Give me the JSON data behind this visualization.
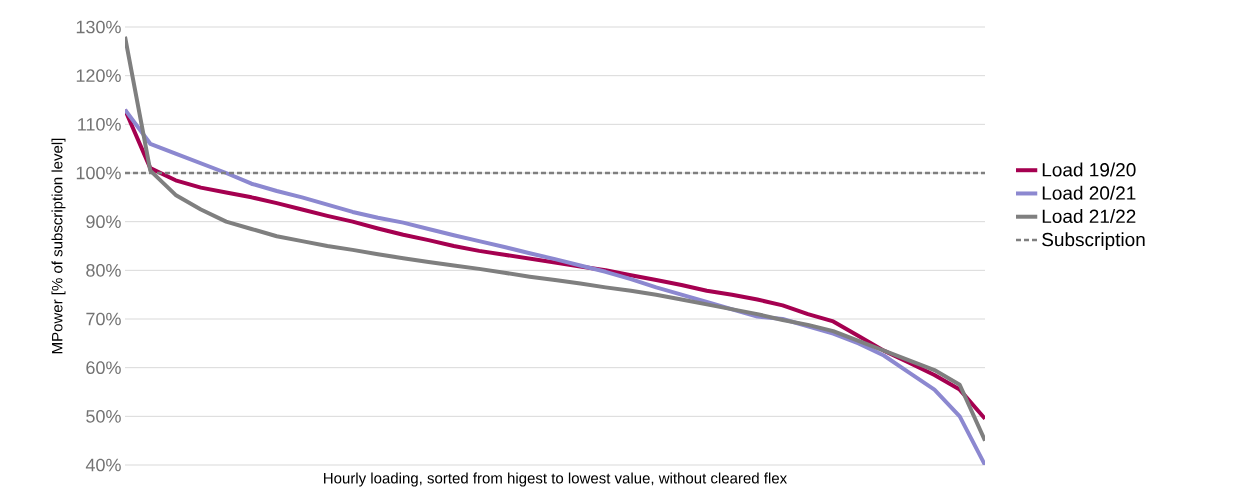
{
  "chart_data": {
    "type": "line",
    "xlabel": "Hourly loading, sorted from higest to lowest value, without cleared flex",
    "ylabel": "MPower [% of  subscription level]",
    "categories": [
      null,
      null,
      null,
      null,
      null,
      null,
      null,
      null,
      null,
      null,
      null,
      null,
      null,
      null,
      null,
      null,
      null,
      null,
      null,
      null,
      null,
      null,
      null,
      null,
      null,
      null,
      null,
      null,
      null,
      null,
      null,
      null,
      null,
      null,
      null
    ],
    "series": [
      {
        "name": "Load 19/20",
        "color": "#a50050",
        "values": [
          113,
          101,
          98.5,
          97,
          96,
          95,
          93.8,
          92.5,
          91.2,
          90,
          88.6,
          87.3,
          86.2,
          85,
          84,
          83.2,
          82.4,
          81.6,
          80.8,
          80,
          79,
          78,
          77,
          75.8,
          75,
          74,
          72.8,
          71,
          69.5,
          66.5,
          63.5,
          61,
          58.5,
          55.5,
          49.5
        ]
      },
      {
        "name": "Load 20/21",
        "color": "#8c88d0",
        "values": [
          113,
          106,
          104,
          102,
          100,
          97.8,
          96.3,
          95,
          93.5,
          92,
          90.8,
          89.8,
          88.5,
          87.2,
          86,
          84.8,
          83.5,
          82.3,
          81,
          79.7,
          78.2,
          76.5,
          75,
          73.5,
          72,
          70.5,
          70,
          68.5,
          67,
          65,
          62.5,
          59,
          55.5,
          50,
          40
        ]
      },
      {
        "name": "Load 21/22",
        "color": "#7f7f7f",
        "values": [
          128,
          100.5,
          95.5,
          92.5,
          90,
          88.5,
          87,
          86,
          85,
          84.2,
          83.3,
          82.5,
          81.7,
          81,
          80.3,
          79.5,
          78.7,
          78,
          77.3,
          76.5,
          75.8,
          75,
          74,
          73,
          72,
          71,
          69.8,
          68.8,
          67.5,
          65.5,
          63.5,
          61.5,
          59.5,
          56.5,
          45
        ]
      }
    ],
    "ref_lines": [
      {
        "axis": "y",
        "value": 100,
        "label": "Subscription",
        "color": "#7f7f7f",
        "line_style": "dashed"
      }
    ],
    "ylim": [
      40,
      130
    ],
    "yticks": [
      {
        "value": 40,
        "label": "40%"
      },
      {
        "value": 50,
        "label": "50%"
      },
      {
        "value": 60,
        "label": "60%"
      },
      {
        "value": 70,
        "label": "70%"
      },
      {
        "value": 80,
        "label": "80%"
      },
      {
        "value": 90,
        "label": "90%"
      },
      {
        "value": 100,
        "label": "100%"
      },
      {
        "value": 110,
        "label": "110%"
      },
      {
        "value": 120,
        "label": "120%"
      },
      {
        "value": 130,
        "label": "130%"
      }
    ],
    "grid": "y",
    "legend": "right",
    "tick_labels": "y"
  }
}
